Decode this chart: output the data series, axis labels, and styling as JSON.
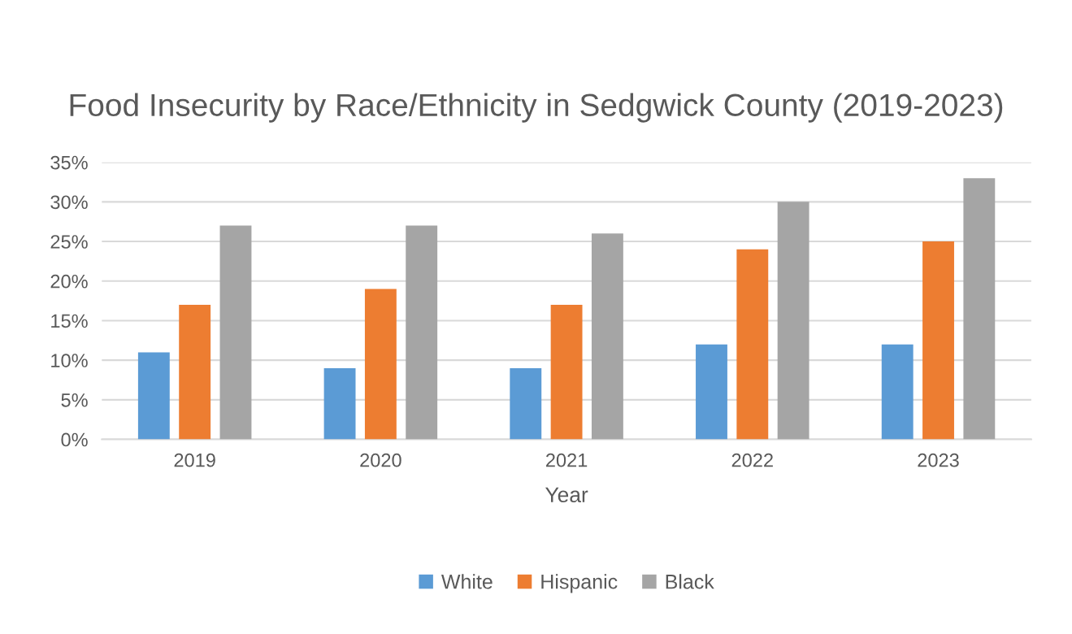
{
  "chart_data": {
    "type": "bar",
    "title": "Food Insecurity by Race/Ethnicity in Sedgwick County (2019-2023)",
    "xlabel": "Year",
    "categories": [
      "2019",
      "2020",
      "2021",
      "2022",
      "2023"
    ],
    "series": [
      {
        "name": "White",
        "color": "#5b9bd5",
        "values": [
          11,
          9,
          9,
          12,
          12
        ]
      },
      {
        "name": "Hispanic",
        "color": "#ed7d31",
        "values": [
          17,
          19,
          17,
          24,
          25
        ]
      },
      {
        "name": "Black",
        "color": "#a5a5a5",
        "values": [
          27,
          27,
          26,
          30,
          33
        ]
      }
    ],
    "ylim": [
      0,
      35
    ],
    "yticks": [
      {
        "value": 0,
        "label": "0%"
      },
      {
        "value": 5,
        "label": "5%"
      },
      {
        "value": 10,
        "label": "10%"
      },
      {
        "value": 15,
        "label": "15%"
      },
      {
        "value": 20,
        "label": "20%"
      },
      {
        "value": 25,
        "label": "25%"
      },
      {
        "value": 30,
        "label": "30%"
      },
      {
        "value": 35,
        "label": "35%"
      }
    ],
    "grid": "y",
    "legend": "bottom"
  }
}
